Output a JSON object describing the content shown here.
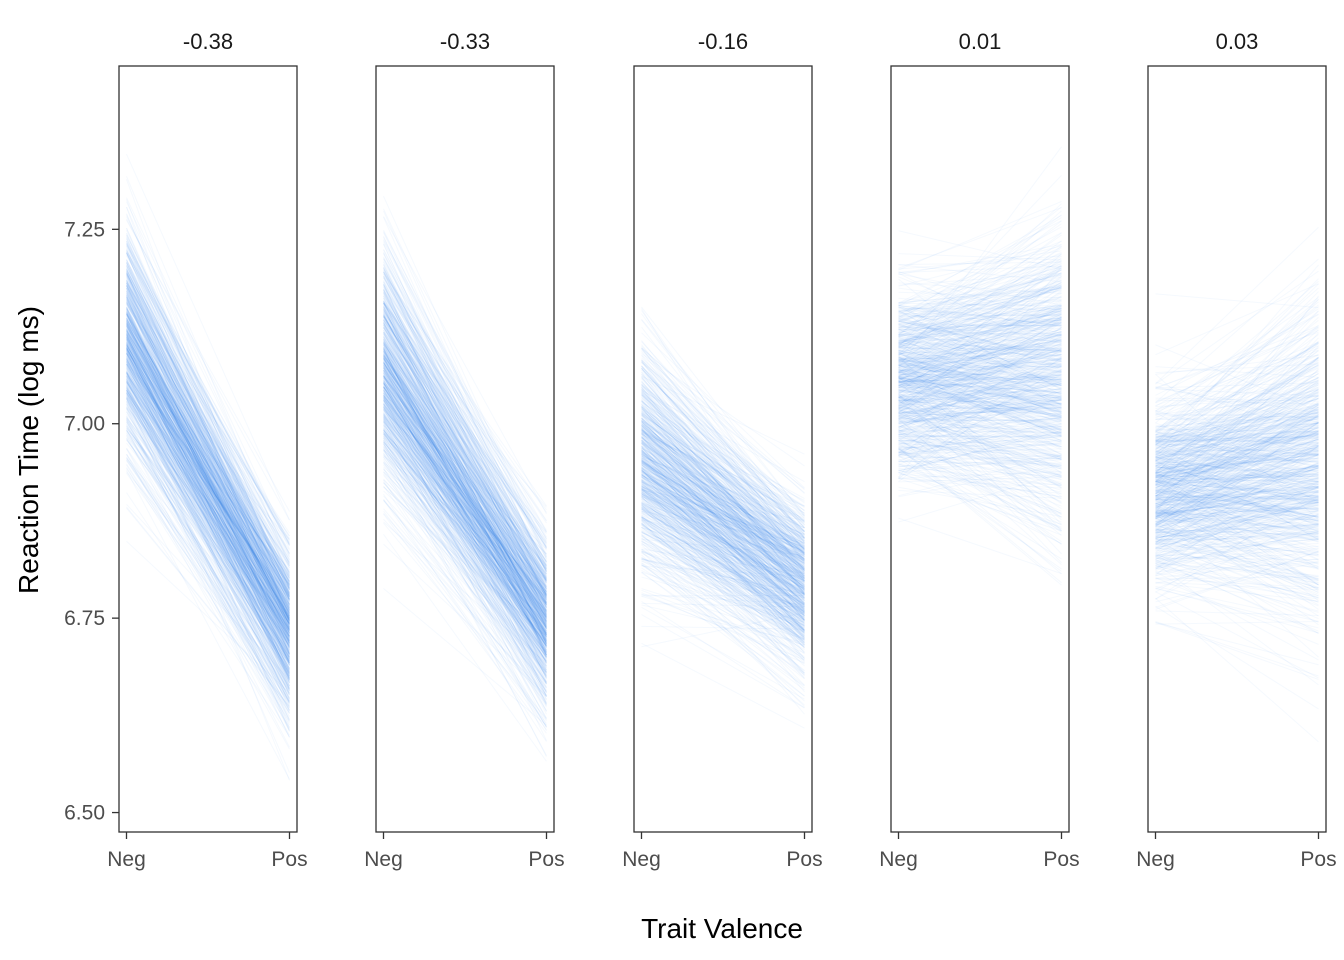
{
  "chart_data": {
    "type": "line",
    "description_free": true,
    "facets": [
      {
        "label": "-0.38",
        "neg_mean": 7.11,
        "pos_mean": 6.73,
        "neg_sd": 0.075,
        "pos_sd": 0.055
      },
      {
        "label": "-0.33",
        "neg_mean": 7.07,
        "pos_mean": 6.74,
        "neg_sd": 0.075,
        "pos_sd": 0.055
      },
      {
        "label": "-0.16",
        "neg_mean": 6.95,
        "pos_mean": 6.79,
        "neg_sd": 0.07,
        "pos_sd": 0.055
      },
      {
        "label": "0.01",
        "neg_mean": 7.05,
        "pos_mean": 7.06,
        "neg_sd": 0.06,
        "pos_sd": 0.1
      },
      {
        "label": "0.03",
        "neg_mean": 6.91,
        "pos_mean": 6.94,
        "neg_sd": 0.06,
        "pos_sd": 0.1
      }
    ],
    "x_categories": [
      "Neg",
      "Pos"
    ],
    "y_ticks": [
      "6.50",
      "6.75",
      "7.00",
      "7.25"
    ],
    "ylim": [
      6.475,
      7.46
    ],
    "xlabel": "Trait Valence",
    "ylabel": "Reaction Time (log ms)",
    "line_color": "#1A7FE8",
    "draws_per_facet": 700,
    "grid": false,
    "legend": "none"
  }
}
